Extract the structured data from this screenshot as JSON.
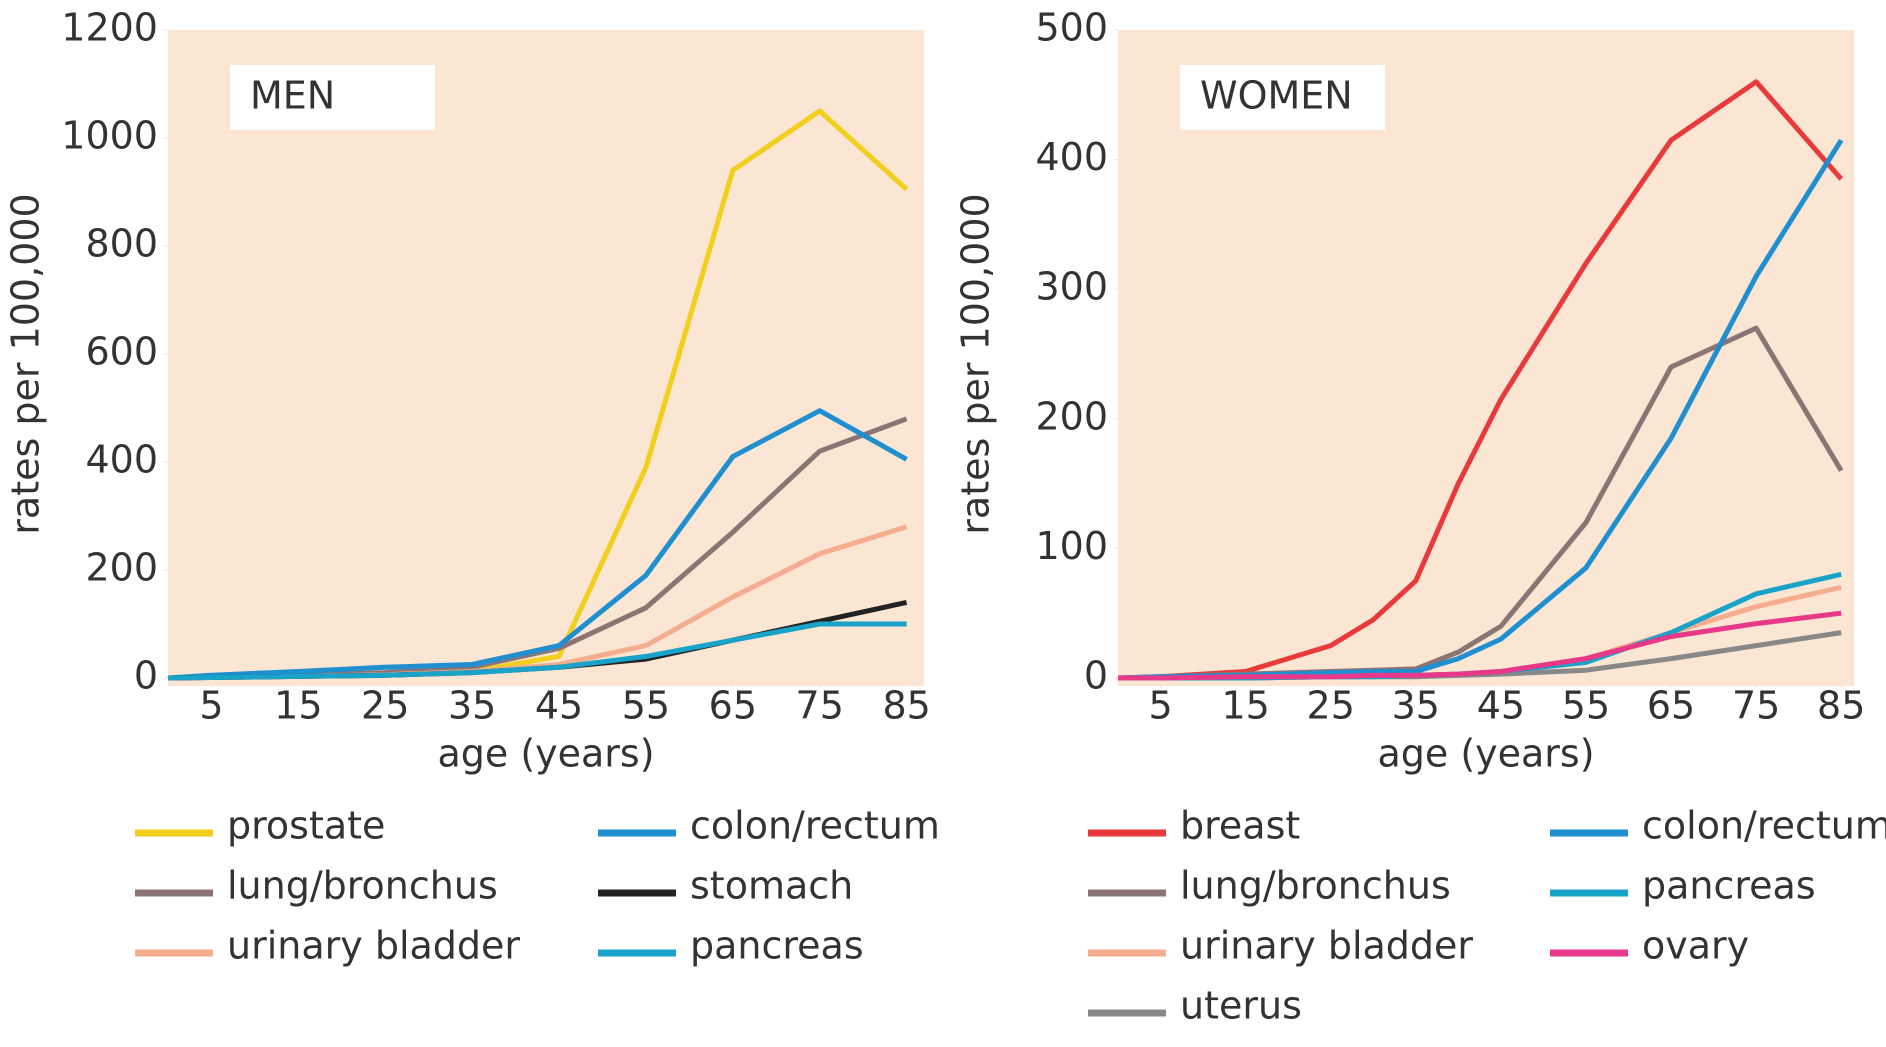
{
  "chart_data": [
    {
      "type": "line",
      "panel_label": "MEN",
      "y_label": "rates per 100,000",
      "x_label": "age (years)",
      "x": [
        0,
        5,
        15,
        25,
        35,
        45,
        55,
        65,
        75,
        85
      ],
      "xlim": [
        0,
        87
      ],
      "xticks": [
        5,
        15,
        25,
        35,
        45,
        55,
        65,
        75,
        85
      ],
      "ylim": [
        0,
        1200
      ],
      "yticks": [
        0,
        200,
        400,
        600,
        800,
        1000,
        1200
      ],
      "series": [
        {
          "name": "prostate",
          "color": "#f2cf1d",
          "values": [
            0,
            2,
            5,
            8,
            12,
            40,
            390,
            940,
            1050,
            905
          ]
        },
        {
          "name": "lung/bronchus",
          "color": "#8c7474",
          "values": [
            0,
            2,
            5,
            10,
            20,
            55,
            130,
            270,
            420,
            480
          ]
        },
        {
          "name": "urinary bladder",
          "color": "#f4ad8e",
          "values": [
            0,
            1,
            3,
            6,
            12,
            25,
            60,
            150,
            230,
            280
          ]
        },
        {
          "name": "colon/rectum",
          "color": "#1f8fd0",
          "values": [
            0,
            5,
            12,
            20,
            25,
            60,
            190,
            410,
            495,
            405
          ]
        },
        {
          "name": "stomach",
          "color": "#222222",
          "values": [
            0,
            1,
            3,
            5,
            10,
            20,
            35,
            70,
            105,
            140
          ]
        },
        {
          "name": "pancreas",
          "color": "#1aa3c9",
          "values": [
            0,
            1,
            3,
            5,
            10,
            20,
            40,
            70,
            100,
            100
          ]
        }
      ]
    },
    {
      "type": "line",
      "panel_label": "WOMEN",
      "y_label": "rates per 100,000",
      "x_label": "age (years)",
      "x": [
        0,
        5,
        15,
        25,
        30,
        35,
        40,
        45,
        55,
        65,
        75,
        85
      ],
      "xlim": [
        0,
        86.5
      ],
      "xticks": [
        5,
        15,
        25,
        35,
        45,
        55,
        65,
        75,
        85
      ],
      "ylim": [
        0,
        500
      ],
      "yticks": [
        0,
        100,
        200,
        300,
        400,
        500
      ],
      "series": [
        {
          "name": "breast",
          "color": "#e83a3a",
          "values": [
            0,
            1,
            5,
            25,
            45,
            75,
            150,
            215,
            320,
            415,
            460,
            385
          ]
        },
        {
          "name": "lung/bronchus",
          "color": "#8c7474",
          "values": [
            0,
            1,
            3,
            5,
            6,
            7,
            20,
            40,
            120,
            240,
            270,
            160
          ]
        },
        {
          "name": "urinary bladder",
          "color": "#f4ad8e",
          "values": [
            0,
            0,
            0,
            1,
            1,
            2,
            3,
            5,
            15,
            35,
            55,
            70
          ]
        },
        {
          "name": "uterus",
          "color": "#888888",
          "values": [
            0,
            0,
            0,
            1,
            1,
            1,
            2,
            3,
            6,
            15,
            25,
            35
          ]
        },
        {
          "name": "colon/rectum",
          "color": "#1f8fd0",
          "values": [
            0,
            1,
            2,
            4,
            5,
            5,
            15,
            30,
            85,
            185,
            310,
            415
          ]
        },
        {
          "name": "pancreas",
          "color": "#1aa3c9",
          "values": [
            0,
            0,
            0,
            1,
            1,
            2,
            3,
            5,
            12,
            35,
            65,
            80
          ]
        },
        {
          "name": "ovary",
          "color": "#e8388a",
          "values": [
            0,
            0,
            1,
            1,
            2,
            2,
            3,
            5,
            15,
            32,
            42,
            50
          ]
        }
      ]
    }
  ]
}
